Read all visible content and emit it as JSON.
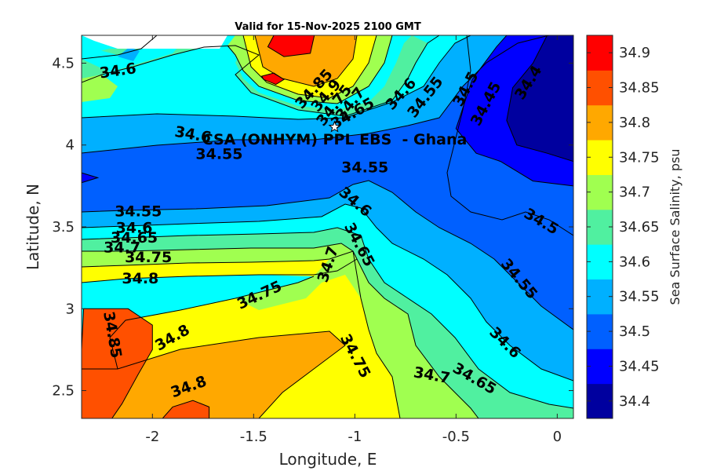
{
  "chart_data": {
    "type": "contourf",
    "title": "Valid for 15-Nov-2025 2100 GMT",
    "xlabel": "Longitude, E",
    "ylabel": "Latitude, N",
    "xlim": [
      -2.35,
      0.08
    ],
    "ylim": [
      2.33,
      4.67
    ],
    "xticks": [
      -2,
      -1.5,
      -1,
      -0.5,
      0
    ],
    "xtick_labels": [
      "-2",
      "-1.5",
      "-1",
      "-0.5",
      "0"
    ],
    "yticks": [
      2.5,
      3,
      3.5,
      4,
      4.5
    ],
    "ytick_labels": [
      "2.5",
      "3",
      "3.5",
      "4",
      "4.5"
    ],
    "colorbar": {
      "label": "Sea Surface Salinity, psu",
      "levels": [
        34.4,
        34.45,
        34.5,
        34.55,
        34.6,
        34.65,
        34.7,
        34.75,
        34.8,
        34.85,
        34.9
      ],
      "tick_labels": [
        "34.4",
        "34.45",
        "34.5",
        "34.55",
        "34.6",
        "34.65",
        "34.7",
        "34.75",
        "34.8",
        "34.85",
        "34.9"
      ],
      "colors": [
        "#00009f",
        "#0000ff",
        "#0060ff",
        "#00b0ff",
        "#00ffff",
        "#50f0a0",
        "#a0ff50",
        "#ffff00",
        "#ffa800",
        "#ff5000",
        "#ff0000"
      ]
    },
    "site": {
      "name": "CSA (ONHYM) PPL EBS  - Ghana",
      "lon": -1.1,
      "lat": 4.11
    },
    "contour_labels": [
      {
        "text": "34.6",
        "lon": -2.17,
        "lat": 4.45,
        "rot": -8
      },
      {
        "text": "34.85",
        "lon": -1.2,
        "lat": 4.34,
        "rot": -48
      },
      {
        "text": "34.9",
        "lon": -1.14,
        "lat": 4.3,
        "rot": -50
      },
      {
        "text": "34.75",
        "lon": -1.1,
        "lat": 4.24,
        "rot": -52
      },
      {
        "text": "34.7",
        "lon": -1.02,
        "lat": 4.25,
        "rot": -52
      },
      {
        "text": "34.65",
        "lon": -1.01,
        "lat": 4.19,
        "rot": -30
      },
      {
        "text": "34.6",
        "lon": -0.77,
        "lat": 4.31,
        "rot": -48
      },
      {
        "text": "34.55",
        "lon": -0.65,
        "lat": 4.29,
        "rot": -52
      },
      {
        "text": "34.5",
        "lon": -0.45,
        "lat": 4.34,
        "rot": -62
      },
      {
        "text": "34.45",
        "lon": -0.35,
        "lat": 4.25,
        "rot": -62
      },
      {
        "text": "34.4",
        "lon": -0.14,
        "lat": 4.38,
        "rot": -58
      },
      {
        "text": "34.6",
        "lon": -1.8,
        "lat": 4.06,
        "rot": 10
      },
      {
        "text": "34.55",
        "lon": -1.67,
        "lat": 3.94,
        "rot": 0
      },
      {
        "text": "34.55",
        "lon": -0.95,
        "lat": 3.86,
        "rot": 0
      },
      {
        "text": "34.6",
        "lon": -1.0,
        "lat": 3.65,
        "rot": 40
      },
      {
        "text": "34.55",
        "lon": -2.07,
        "lat": 3.59,
        "rot": 0
      },
      {
        "text": "34.6",
        "lon": -2.09,
        "lat": 3.49,
        "rot": 0
      },
      {
        "text": "34.65",
        "lon": -2.09,
        "lat": 3.43,
        "rot": 0
      },
      {
        "text": "34.7",
        "lon": -2.15,
        "lat": 3.37,
        "rot": 0
      },
      {
        "text": "34.75",
        "lon": -2.02,
        "lat": 3.31,
        "rot": 0
      },
      {
        "text": "34.8",
        "lon": -2.06,
        "lat": 3.18,
        "rot": 0
      },
      {
        "text": "34.65",
        "lon": -0.98,
        "lat": 3.39,
        "rot": 62
      },
      {
        "text": "34.7",
        "lon": -1.13,
        "lat": 3.27,
        "rot": -72
      },
      {
        "text": "34.75",
        "lon": -1.47,
        "lat": 3.08,
        "rot": -25
      },
      {
        "text": "34.5",
        "lon": -0.08,
        "lat": 3.53,
        "rot": 30
      },
      {
        "text": "34.55",
        "lon": -0.19,
        "lat": 3.18,
        "rot": 50
      },
      {
        "text": "34.85",
        "lon": -2.2,
        "lat": 2.84,
        "rot": 80
      },
      {
        "text": "34.8",
        "lon": -1.9,
        "lat": 2.82,
        "rot": -30
      },
      {
        "text": "34.75",
        "lon": -1.0,
        "lat": 2.71,
        "rot": 62
      },
      {
        "text": "34.6",
        "lon": -0.26,
        "lat": 2.79,
        "rot": 45
      },
      {
        "text": "34.7",
        "lon": -0.62,
        "lat": 2.59,
        "rot": 10
      },
      {
        "text": "34.65",
        "lon": -0.41,
        "lat": 2.57,
        "rot": 30
      },
      {
        "text": "34.8",
        "lon": -1.82,
        "lat": 2.52,
        "rot": -20
      }
    ],
    "regions": [
      {
        "level": 34.85,
        "polygon": [
          [
            -2.35,
            2.33
          ],
          [
            -2.35,
            2.75
          ],
          [
            -2.34,
            3.0
          ],
          [
            -2.12,
            3.0
          ],
          [
            -2.0,
            2.9
          ],
          [
            -2.0,
            2.75
          ],
          [
            -2.07,
            2.6
          ],
          [
            -2.15,
            2.42
          ],
          [
            -2.2,
            2.33
          ]
        ]
      },
      {
        "level": 34.85,
        "polygon": [
          [
            -1.95,
            2.33
          ],
          [
            -1.9,
            2.4
          ],
          [
            -1.8,
            2.44
          ],
          [
            -1.72,
            2.4
          ],
          [
            -1.72,
            2.33
          ]
        ]
      },
      {
        "level": 34.45,
        "polygon": [
          [
            -0.25,
            4.67
          ],
          [
            0.08,
            4.67
          ],
          [
            0.08,
            3.75
          ],
          [
            -0.12,
            3.78
          ],
          [
            -0.28,
            3.9
          ],
          [
            -0.4,
            3.95
          ],
          [
            -0.5,
            4.1
          ],
          [
            -0.42,
            4.4
          ],
          [
            -0.3,
            4.6
          ]
        ]
      },
      {
        "level": 34.4,
        "polygon": [
          [
            -0.05,
            4.67
          ],
          [
            0.08,
            4.67
          ],
          [
            0.08,
            3.9
          ],
          [
            -0.05,
            3.95
          ],
          [
            -0.2,
            4.0
          ],
          [
            -0.25,
            4.15
          ],
          [
            -0.22,
            4.35
          ],
          [
            -0.12,
            4.5
          ]
        ]
      },
      {
        "level": 34.45,
        "polygon": [
          [
            -2.35,
            3.77
          ],
          [
            -2.35,
            3.83
          ],
          [
            -2.27,
            3.8
          ]
        ]
      },
      {
        "level": 34.9,
        "polygon": [
          [
            -1.4,
            4.67
          ],
          [
            -1.2,
            4.67
          ],
          [
            -1.22,
            4.56
          ],
          [
            -1.35,
            4.54
          ],
          [
            -1.43,
            4.6
          ]
        ]
      },
      {
        "level": 34.9,
        "polygon": [
          [
            -1.45,
            4.4
          ],
          [
            -1.39,
            4.37
          ],
          [
            -1.35,
            4.4
          ],
          [
            -1.4,
            4.44
          ],
          [
            -1.46,
            4.42
          ]
        ]
      }
    ]
  },
  "notes": {
    "colorbar_unit": "psu"
  }
}
